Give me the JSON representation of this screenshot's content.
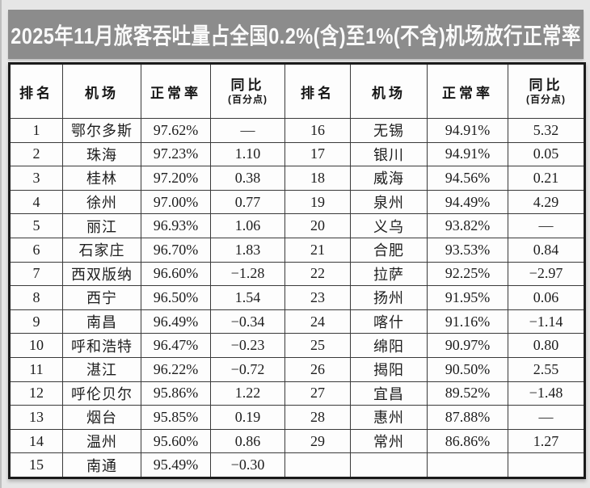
{
  "title": "2025年11月旅客吞吐量占全国0.2%(含)至1%(不含)机场放行正常率",
  "table": {
    "headers": {
      "rank": "排名",
      "airport": "机场",
      "rate": "正常率",
      "yoy": "同比",
      "yoy_unit": "(百分点)"
    },
    "left": [
      {
        "rank": "1",
        "airport": "鄂尔多斯",
        "rate": "97.62%",
        "yoy": "—"
      },
      {
        "rank": "2",
        "airport": "珠海",
        "rate": "97.23%",
        "yoy": "1.10"
      },
      {
        "rank": "3",
        "airport": "桂林",
        "rate": "97.20%",
        "yoy": "0.38"
      },
      {
        "rank": "4",
        "airport": "徐州",
        "rate": "97.00%",
        "yoy": "0.77"
      },
      {
        "rank": "5",
        "airport": "丽江",
        "rate": "96.93%",
        "yoy": "1.06"
      },
      {
        "rank": "6",
        "airport": "石家庄",
        "rate": "96.70%",
        "yoy": "1.83"
      },
      {
        "rank": "7",
        "airport": "西双版纳",
        "rate": "96.60%",
        "yoy": "−1.28"
      },
      {
        "rank": "8",
        "airport": "西宁",
        "rate": "96.50%",
        "yoy": "1.54"
      },
      {
        "rank": "9",
        "airport": "南昌",
        "rate": "96.49%",
        "yoy": "−0.34"
      },
      {
        "rank": "10",
        "airport": "呼和浩特",
        "rate": "96.47%",
        "yoy": "−0.23"
      },
      {
        "rank": "11",
        "airport": "湛江",
        "rate": "96.22%",
        "yoy": "−0.72"
      },
      {
        "rank": "12",
        "airport": "呼伦贝尔",
        "rate": "95.86%",
        "yoy": "1.22"
      },
      {
        "rank": "13",
        "airport": "烟台",
        "rate": "95.85%",
        "yoy": "0.19"
      },
      {
        "rank": "14",
        "airport": "温州",
        "rate": "95.60%",
        "yoy": "0.86"
      },
      {
        "rank": "15",
        "airport": "南通",
        "rate": "95.49%",
        "yoy": "−0.30"
      }
    ],
    "right": [
      {
        "rank": "16",
        "airport": "无锡",
        "rate": "94.91%",
        "yoy": "5.32"
      },
      {
        "rank": "17",
        "airport": "银川",
        "rate": "94.91%",
        "yoy": "0.05"
      },
      {
        "rank": "18",
        "airport": "威海",
        "rate": "94.56%",
        "yoy": "0.21"
      },
      {
        "rank": "19",
        "airport": "泉州",
        "rate": "94.49%",
        "yoy": "4.29"
      },
      {
        "rank": "20",
        "airport": "义乌",
        "rate": "93.82%",
        "yoy": "—"
      },
      {
        "rank": "21",
        "airport": "合肥",
        "rate": "93.53%",
        "yoy": "0.84"
      },
      {
        "rank": "22",
        "airport": "拉萨",
        "rate": "92.25%",
        "yoy": "−2.97"
      },
      {
        "rank": "23",
        "airport": "扬州",
        "rate": "91.95%",
        "yoy": "0.06"
      },
      {
        "rank": "24",
        "airport": "喀什",
        "rate": "91.16%",
        "yoy": "−1.14"
      },
      {
        "rank": "25",
        "airport": "绵阳",
        "rate": "90.97%",
        "yoy": "0.80"
      },
      {
        "rank": "26",
        "airport": "揭阳",
        "rate": "90.50%",
        "yoy": "2.55"
      },
      {
        "rank": "27",
        "airport": "宜昌",
        "rate": "89.52%",
        "yoy": "−1.48"
      },
      {
        "rank": "28",
        "airport": "惠州",
        "rate": "87.88%",
        "yoy": "—"
      },
      {
        "rank": "29",
        "airport": "常州",
        "rate": "86.86%",
        "yoy": "1.27"
      },
      {
        "rank": "",
        "airport": "",
        "rate": "",
        "yoy": ""
      }
    ]
  }
}
